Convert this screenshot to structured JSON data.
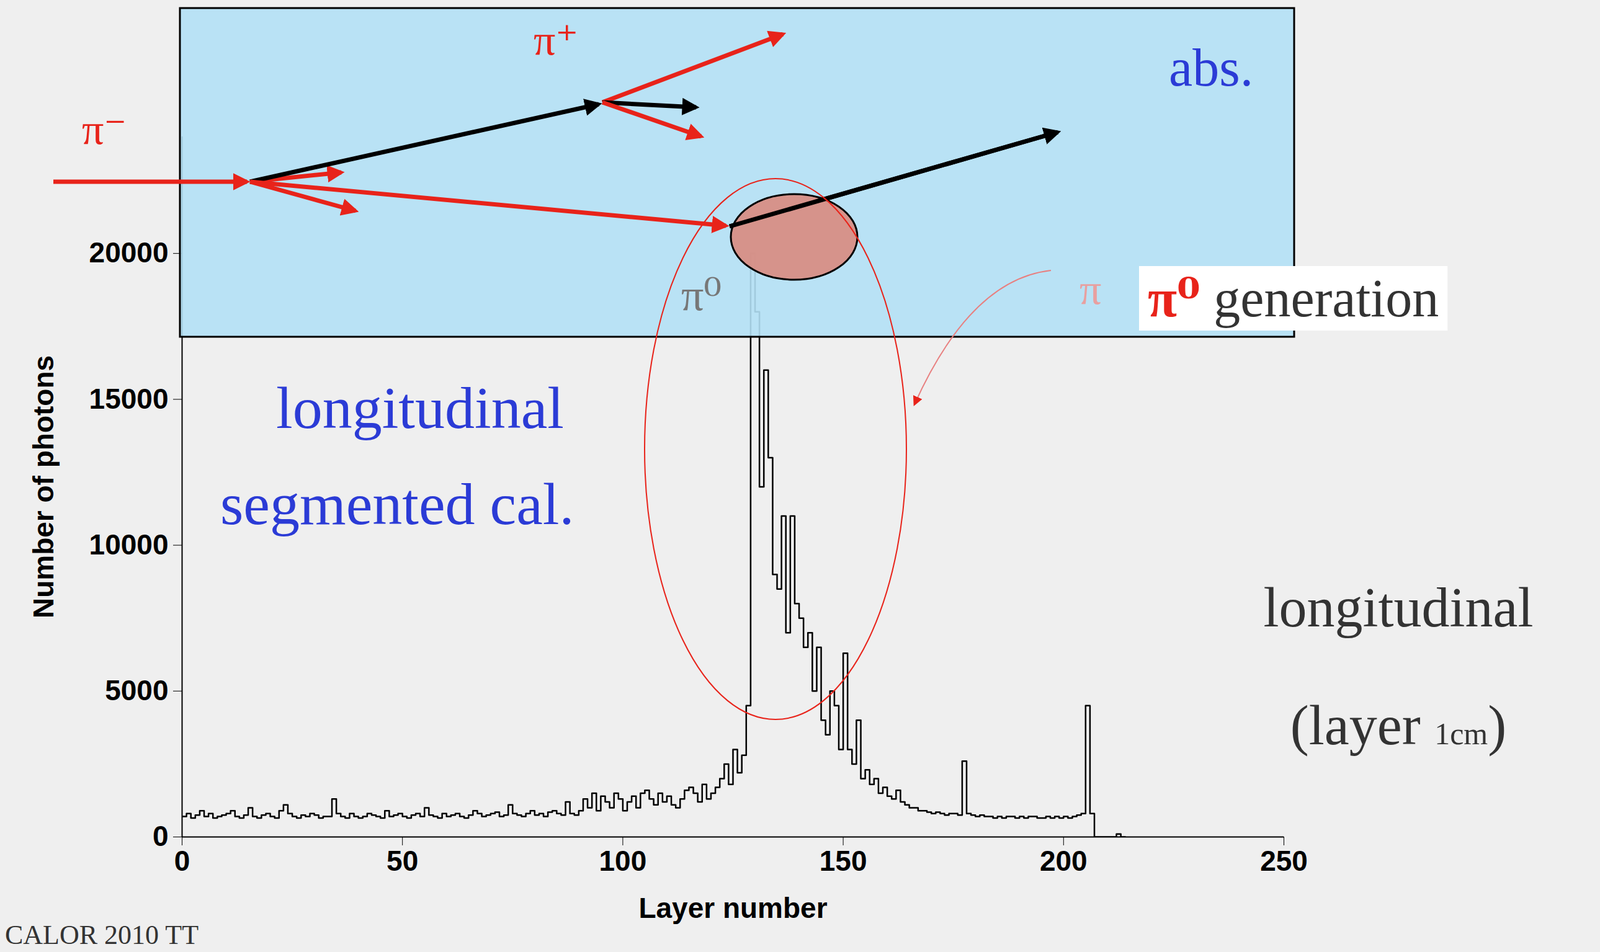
{
  "chart_data": {
    "type": "line",
    "line_style": "steps",
    "color": "#000000",
    "x_label": "Layer number",
    "y_label": "Number of photons",
    "xlim": [
      0,
      250
    ],
    "ylim": [
      0,
      24000
    ],
    "xticks": [
      0,
      50,
      100,
      150,
      200,
      250
    ],
    "yticks": [
      0,
      5000,
      10000,
      15000,
      20000
    ],
    "x": [
      0,
      1,
      2,
      3,
      4,
      5,
      6,
      7,
      8,
      9,
      10,
      11,
      12,
      13,
      14,
      15,
      16,
      17,
      18,
      19,
      20,
      21,
      22,
      23,
      24,
      25,
      26,
      27,
      28,
      29,
      30,
      31,
      32,
      33,
      34,
      35,
      36,
      37,
      38,
      39,
      40,
      41,
      42,
      43,
      44,
      45,
      46,
      47,
      48,
      49,
      50,
      51,
      52,
      53,
      54,
      55,
      56,
      57,
      58,
      59,
      60,
      61,
      62,
      63,
      64,
      65,
      66,
      67,
      68,
      69,
      70,
      71,
      72,
      73,
      74,
      75,
      76,
      77,
      78,
      79,
      80,
      81,
      82,
      83,
      84,
      85,
      86,
      87,
      88,
      89,
      90,
      91,
      92,
      93,
      94,
      95,
      96,
      97,
      98,
      99,
      100,
      101,
      102,
      103,
      104,
      105,
      106,
      107,
      108,
      109,
      110,
      111,
      112,
      113,
      114,
      115,
      116,
      117,
      118,
      119,
      120,
      121,
      122,
      123,
      124,
      125,
      126,
      127,
      128,
      129,
      130,
      131,
      132,
      133,
      134,
      135,
      136,
      137,
      138,
      139,
      140,
      141,
      142,
      143,
      144,
      145,
      146,
      147,
      148,
      149,
      150,
      151,
      152,
      153,
      154,
      155,
      156,
      157,
      158,
      159,
      160,
      161,
      162,
      163,
      164,
      165,
      166,
      167,
      168,
      169,
      170,
      171,
      172,
      173,
      174,
      175,
      176,
      177,
      178,
      179,
      180,
      181,
      182,
      183,
      184,
      185,
      186,
      187,
      188,
      189,
      190,
      191,
      192,
      193,
      194,
      195,
      196,
      197,
      198,
      199,
      200,
      201,
      202,
      203,
      204,
      205,
      206,
      207,
      208,
      209,
      210,
      211,
      212,
      213,
      214
    ],
    "values": [
      700,
      800,
      650,
      750,
      900,
      700,
      800,
      650,
      700,
      750,
      800,
      900,
      700,
      650,
      750,
      1000,
      700,
      650,
      750,
      800,
      700,
      650,
      900,
      1100,
      800,
      700,
      650,
      750,
      700,
      800,
      750,
      650,
      700,
      700,
      1300,
      800,
      700,
      650,
      800,
      700,
      650,
      700,
      800,
      750,
      700,
      650,
      900,
      700,
      750,
      800,
      700,
      650,
      750,
      800,
      700,
      1000,
      750,
      700,
      650,
      800,
      700,
      750,
      800,
      700,
      650,
      750,
      900,
      800,
      700,
      750,
      800,
      850,
      700,
      750,
      1100,
      800,
      750,
      700,
      800,
      900,
      750,
      800,
      700,
      850,
      900,
      800,
      750,
      1200,
      800,
      750,
      900,
      1300,
      1000,
      1500,
      900,
      1400,
      1200,
      1000,
      1500,
      1300,
      900,
      1200,
      1400,
      1000,
      1500,
      1600,
      1300,
      1100,
      1500,
      1200,
      1400,
      1100,
      1000,
      1300,
      1600,
      1700,
      1500,
      1200,
      1800,
      1300,
      1500,
      1700,
      2000,
      2500,
      1800,
      3000,
      2200,
      2800,
      4500,
      20000,
      18000,
      12000,
      16000,
      13000,
      9000,
      8500,
      11000,
      7000,
      11000,
      8000,
      7500,
      6500,
      7000,
      5000,
      6500,
      4000,
      3500,
      5000,
      4500,
      3000,
      6300,
      3000,
      2500,
      4000,
      2000,
      2300,
      1800,
      2000,
      1500,
      1700,
      1400,
      1300,
      1600,
      1200,
      1100,
      1000,
      1000,
      900,
      900,
      850,
      800,
      850,
      800,
      750,
      800,
      800,
      750,
      2600,
      800,
      750,
      700,
      750,
      700,
      700,
      650,
      700,
      650,
      700,
      700,
      650,
      700,
      650,
      700,
      700,
      650,
      650,
      700,
      650,
      700,
      650,
      700,
      650,
      700,
      750,
      800,
      4500,
      800,
      0,
      0,
      0,
      0,
      0,
      100,
      0,
      0
    ],
    "annotations": {
      "pi_minus": "π⁻",
      "pi_plus": "π⁺",
      "absorber": "abs.",
      "pi0": "π⁰",
      "pi0_generation_faint": "π",
      "pi0_generation": [
        "π⁰",
        " generation"
      ],
      "segmented": [
        "longitudinal",
        "segmented cal."
      ],
      "layer_note": [
        "longitudinal",
        "(layer ",
        "1cm",
        ")"
      ],
      "credit": "CALOR 2010 TT"
    }
  }
}
